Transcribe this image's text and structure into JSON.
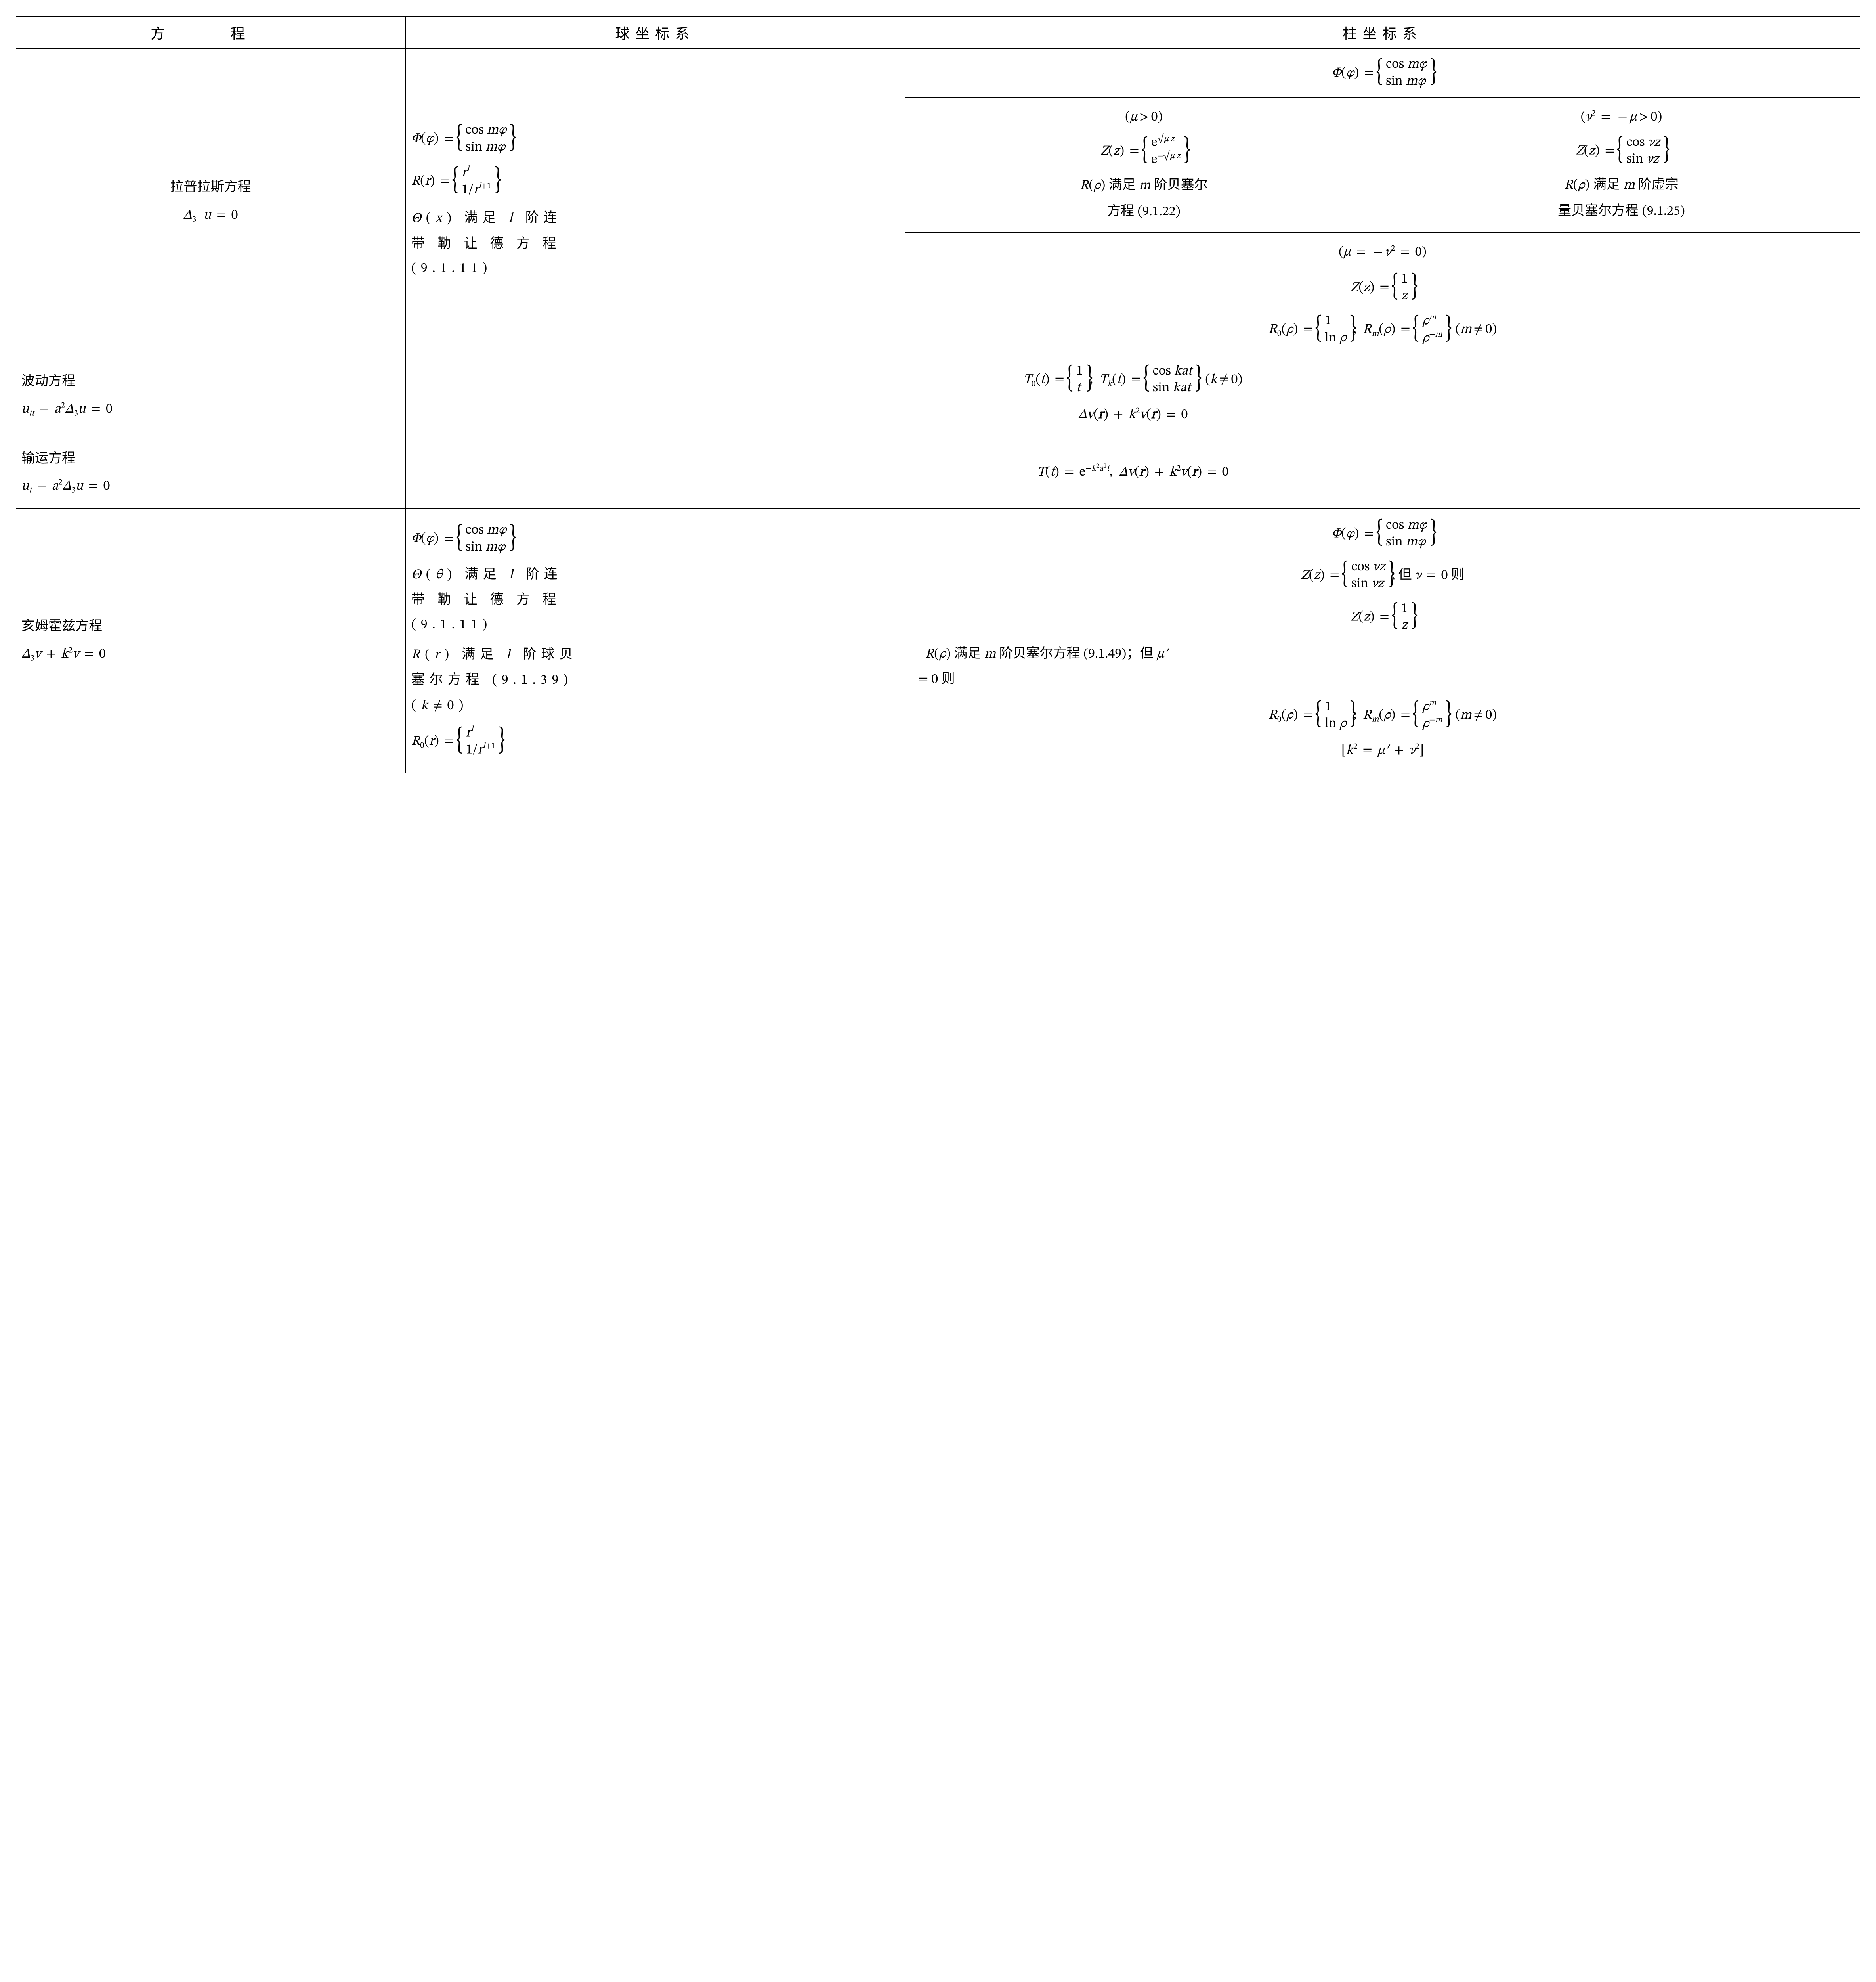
{
  "header": {
    "col1": "方　程",
    "col2": "球坐标系",
    "col3": "柱坐标系"
  },
  "rows": {
    "laplace": {
      "name_line1": "拉普拉斯方程",
      "name_eq_html": "Δ<span class='sub subn'>3</span><span class='op'> </span>u<span class='op'> = </span><span class='rm'>0</span>",
      "sph_phi_html": "Φ<span class='rm'>(</span>φ<span class='rm'>)</span><span class='op'> = </span><span class='case'><span class='row'><span class='rm'>cos </span>mφ</span><span class='row'><span class='rm'>sin </span>mφ</span></span>",
      "sph_R_html": "R<span class='rm'>(</span>r<span class='rm'>)</span><span class='op'> = </span><span class='case'><span class='row center'>r<span class='sup'>l</span></span><span class='row'><span class='rm'>1/</span>r<span class='sup'>l<span class='rm'>+1</span></span></span></span>",
      "sph_theta_text": "Θ(x) 满足 l 阶连带勒让德方程 (9.1.11)",
      "cyl_phi_html": "Φ<span class='rm'>(</span>φ<span class='rm'>)</span><span class='op'> = </span><span class='case'><span class='row'><span class='rm'>cos </span>mφ</span><span class='row'><span class='rm'>sin </span>mφ</span></span>",
      "cyl_muA_cond_html": "<span class='rm'>(</span>μ<span class='op rm'>&gt;</span><span class='rm'>0)</span>",
      "cyl_muA_Z_html": "Z<span class='rm'>(</span>z<span class='rm'>)</span><span class='op'> = </span><span class='case'><span class='row'><span class='rm'>e</span><span class='sup'><span class='rm'>√</span>μ<span class='rm'> </span>z</span></span><span class='row'><span class='rm'>e</span><span class='sup'><span class='rm'>−√</span>μ<span class='rm'> </span>z</span></span></span>",
      "cyl_muA_R_text": "R(ρ) 满足 m 阶贝塞尔方程 (9.1.22)",
      "cyl_muB_cond_html": "<span class='rm'>(</span>ν<span class='sup subn'>2</span><span class='op'> = </span><span class='op rm'>−</span>μ<span class='op rm'>&gt;</span><span class='rm'>0)</span>",
      "cyl_muB_Z_html": "Z<span class='rm'>(</span>z<span class='rm'>)</span><span class='op'> = </span><span class='case'><span class='row'><span class='rm'>cos </span>νz</span><span class='row'><span class='rm'>sin </span>νz</span></span>",
      "cyl_muB_R_text": "R(ρ) 满足 m 阶虚宗量贝塞尔方程 (9.1.25)",
      "cyl_muC_cond_html": "<span class='rm'>(</span>μ<span class='op'> = </span><span class='op rm'>−</span>ν<span class='sup subn'>2</span><span class='op'> = </span><span class='rm'>0)</span>",
      "cyl_muC_Z_html": "Z<span class='rm'>(</span>z<span class='rm'>)</span><span class='op'> = </span><span class='case'><span class='row'><span class='rm'>1</span></span><span class='row'>z</span></span>",
      "cyl_muC_R_html": "R<span class='sub subn'>0</span><span class='rm'>(</span>ρ<span class='rm'>)</span><span class='op'> = </span><span class='case'><span class='row center'><span class='rm'>1</span></span><span class='row'><span class='rm'>ln </span>ρ</span></span><span class='rm'>;&nbsp;&nbsp;</span>R<span class='sub'>m</span><span class='rm'>(</span>ρ<span class='rm'>)</span><span class='op'> = </span><span class='case'><span class='row'>ρ<span class='sup'>m</span></span><span class='row'>ρ<span class='sup'><span class='rm'>−</span>m</span></span></span>&nbsp;&nbsp;<span class='rm'>(</span>m<span class='op rm'>≠</span><span class='rm'>0)</span>"
    },
    "wave": {
      "name_line1": "波动方程",
      "name_eq_html": "u<span class='sub'>tt</span><span class='op rm'> − </span>a<span class='sup subn'>2</span>Δ<span class='sub subn'>3</span>u<span class='op'> = </span><span class='rm'>0</span>",
      "line1_html": "T<span class='sub subn'>0</span><span class='rm'>(</span>t<span class='rm'>)</span><span class='op'> = </span><span class='case'><span class='row'><span class='rm'>1</span></span><span class='row'>t</span></span><span class='rm'>;&nbsp;&nbsp;</span>T<span class='sub'>k</span><span class='rm'>(</span>t<span class='rm'>)</span><span class='op'> = </span><span class='case'><span class='row'><span class='rm'>cos </span>kat</span><span class='row'><span class='rm'>sin </span>kat</span></span>&nbsp;&nbsp;<span class='rm'>(</span>k<span class='op rm'>≠</span><span class='rm'>0)</span>",
      "line2_html": "Δv<span class='rm'>(</span><span class='bold'>r</span><span class='rm'>)</span><span class='op rm'> + </span>k<span class='sup subn'>2</span>v<span class='rm'>(</span><span class='bold'>r</span><span class='rm'>)</span><span class='op'> = </span><span class='rm'>0</span>"
    },
    "transport": {
      "name_line1": "输运方程",
      "name_eq_html": "u<span class='sub'>t</span><span class='op rm'> − </span>a<span class='sup subn'>2</span>Δ<span class='sub subn'>3</span>u<span class='op'> = </span><span class='rm'>0</span>",
      "line_html": "T<span class='rm'>(</span>t<span class='rm'>)</span><span class='op'> = </span><span class='rm'>e</span><span class='sup'><span class='rm'>−</span>k<span class='supn' style='font-size:0.8em;vertical-align:0.4em'>2</span>a<span class='supn' style='font-size:0.8em;vertical-align:0.4em'>2</span>t</span><span class='rm'>,&nbsp;&nbsp;</span>Δv<span class='rm'>(</span><span class='bold'>r</span><span class='rm'>)</span><span class='op rm'> + </span>k<span class='sup subn'>2</span>v<span class='rm'>(</span><span class='bold'>r</span><span class='rm'>)</span><span class='op'> = </span><span class='rm'>0</span>"
    },
    "helmholtz": {
      "name_line1": "亥姆霍兹方程",
      "name_eq_html": "Δ<span class='sub subn'>3</span>v<span class='op rm'> + </span>k<span class='sup subn'>2</span>v<span class='op'> = </span><span class='rm'>0</span>",
      "sph_phi_html": "Φ<span class='rm'>(</span>φ<span class='rm'>)</span><span class='op'> = </span><span class='case'><span class='row'><span class='rm'>cos </span>mφ</span><span class='row'><span class='rm'>sin </span>mφ</span></span>",
      "sph_theta_text": "Θ(θ) 满足 l 阶连带勒让德方程 (9.1.11)",
      "sph_R_text": "R(r) 满足 l 阶球贝塞尔方程 (9.1.39) (k≠0)",
      "sph_R0_html": "R<span class='sub subn'>0</span><span class='rm'>(</span>r<span class='rm'>)</span><span class='op'> = </span><span class='case'><span class='row center'>r<span class='sup'>l</span></span><span class='row'><span class='rm'>1/</span>r<span class='sup'>l<span class='rm'>+1</span></span></span></span>",
      "cyl_phi_html": "Φ<span class='rm'>(</span>φ<span class='rm'>)</span><span class='op'> = </span><span class='case'><span class='row'><span class='rm'>cos </span>mφ</span><span class='row'><span class='rm'>sin </span>mφ</span></span>",
      "cyl_Z_html": "Z<span class='rm'>(</span>z<span class='rm'>)</span><span class='op'> = </span><span class='case'><span class='row'><span class='rm'>cos </span>νz</span><span class='row'><span class='rm'>sin </span>νz</span></span><span class='rm'>;</span>&nbsp;<span class='zh'>但</span>&nbsp;ν<span class='op'> = </span><span class='rm'>0</span>&nbsp;<span class='zh'>则</span>",
      "cyl_Z0_html": "Z<span class='rm'>(</span>z<span class='rm'>)</span><span class='op'> = </span><span class='case'><span class='row'><span class='rm'>1</span></span><span class='row'>z</span></span>",
      "cyl_R_text": "R(ρ) 满足 m 阶贝塞尔方程 (9.1.49)；但 μ′ = 0 则",
      "cyl_R0_html": "R<span class='sub subn'>0</span><span class='rm'>(</span>ρ<span class='rm'>)</span><span class='op'> = </span><span class='case'><span class='row center'><span class='rm'>1</span></span><span class='row'><span class='rm'>ln </span>ρ</span></span><span class='rm'>;&nbsp;&nbsp;</span>R<span class='sub'>m</span><span class='rm'>(</span>ρ<span class='rm'>)</span><span class='op'> = </span><span class='case'><span class='row'>ρ<span class='sup'>m</span></span><span class='row'>ρ<span class='sup'><span class='rm'>−</span>m</span></span></span>&nbsp;&nbsp;<span class='rm'>(</span>m<span class='op rm'>≠</span><span class='rm'>0)</span>",
      "cyl_bracket_html": "<span class='rm'>[</span>k<span class='sup subn'>2</span><span class='op'> = </span>μ′<span class='op rm'> + </span>ν<span class='sup subn'>2</span><span class='rm'>]</span>"
    }
  }
}
